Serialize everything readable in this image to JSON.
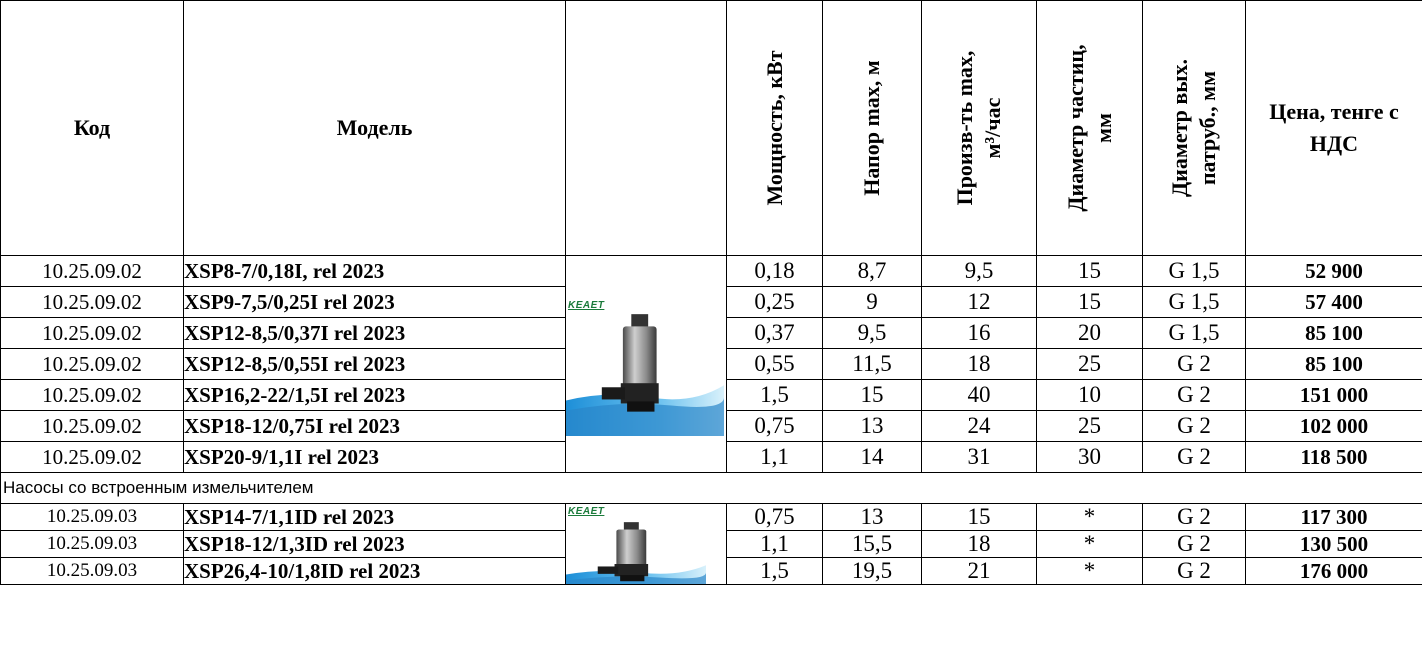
{
  "header": {
    "code": "Код",
    "model": "Модель",
    "power": "Мощность, кВт",
    "head_max": "Напор max, м",
    "flow_max_line1": "Произв-ть max,",
    "flow_max_line2": "м³/час",
    "particle_line1": "Диаметр частиц,",
    "particle_line2": "мм",
    "outlet_line1": "Диаметр вых.",
    "outlet_line2": "патруб., мм",
    "price": "Цена, тенге с НДС"
  },
  "group1": {
    "brand_logo": "KEAET",
    "image_icon": "submersible-pump-image",
    "rows": [
      {
        "code": "10.25.09.02",
        "model": "XSP8-7/0,18I, rel 2023",
        "power": "0,18",
        "head": "8,7",
        "flow": "9,5",
        "particle": "15",
        "outlet": "G 1,5",
        "price": "52 900"
      },
      {
        "code": "10.25.09.02",
        "model": "XSP9-7,5/0,25I rel 2023",
        "power": "0,25",
        "head": "9",
        "flow": "12",
        "particle": "15",
        "outlet": "G 1,5",
        "price": "57 400"
      },
      {
        "code": "10.25.09.02",
        "model": "XSP12-8,5/0,37I rel 2023",
        "power": "0,37",
        "head": "9,5",
        "flow": "16",
        "particle": "20",
        "outlet": "G 1,5",
        "price": "85 100"
      },
      {
        "code": "10.25.09.02",
        "model": "XSP12-8,5/0,55I rel 2023",
        "power": "0,55",
        "head": "11,5",
        "flow": "18",
        "particle": "25",
        "outlet": "G 2",
        "price": "85 100"
      },
      {
        "code": "10.25.09.02",
        "model": "XSP16,2-22/1,5I rel 2023",
        "power": "1,5",
        "head": "15",
        "flow": "40",
        "particle": "10",
        "outlet": "G 2",
        "price": "151 000"
      },
      {
        "code": "10.25.09.02",
        "model": "XSP18-12/0,75I rel 2023",
        "power": "0,75",
        "head": "13",
        "flow": "24",
        "particle": "25",
        "outlet": "G 2",
        "price": "102 000"
      },
      {
        "code": "10.25.09.02",
        "model": "XSP20-9/1,1I rel 2023",
        "power": "1,1",
        "head": "14",
        "flow": "31",
        "particle": "30",
        "outlet": "G 2",
        "price": "118 500"
      }
    ]
  },
  "section_label": "Насосы со встроенным измельчителем",
  "group2": {
    "brand_logo": "KEAET",
    "image_icon": "grinder-pump-image",
    "rows": [
      {
        "code": "10.25.09.03",
        "model": "XSP14-7/1,1ID rel 2023",
        "power": "0,75",
        "head": "13",
        "flow": "15",
        "particle": "*",
        "outlet": "G 2",
        "price": "117 300"
      },
      {
        "code": "10.25.09.03",
        "model": "XSP18-12/1,3ID rel 2023",
        "power": "1,1",
        "head": "15,5",
        "flow": "18",
        "particle": "*",
        "outlet": "G 2",
        "price": "130 500"
      },
      {
        "code": "10.25.09.03",
        "model": "XSP26,4-10/1,8ID rel 2023",
        "power": "1,5",
        "head": "19,5",
        "flow": "21",
        "particle": "*",
        "outlet": "G 2",
        "price": "176 000"
      }
    ]
  }
}
